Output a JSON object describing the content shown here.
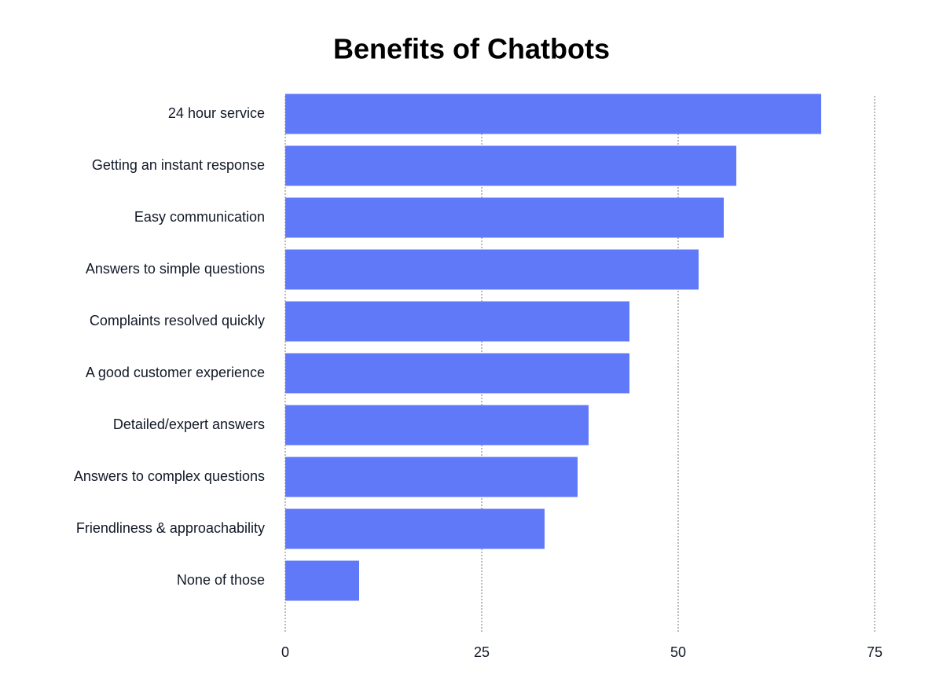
{
  "chart_data": {
    "type": "bar",
    "orientation": "horizontal",
    "title": "Benefits of Chatbots",
    "categories": [
      "24 hour service",
      "Getting an instant response",
      "Easy communication",
      "Answers to simple questions",
      "Complaints resolved quickly",
      "A good customer experience",
      "Detailed/expert answers",
      "Answers to complex questions",
      "Friendliness & approachability",
      "None of those"
    ],
    "values": [
      68.2,
      57.4,
      55.8,
      52.6,
      43.8,
      43.8,
      38.6,
      37.2,
      33,
      9.4
    ],
    "color": "#6079f9",
    "xlim": [
      0,
      75
    ],
    "xticks": [
      0,
      25,
      50,
      75
    ],
    "grid": true
  }
}
